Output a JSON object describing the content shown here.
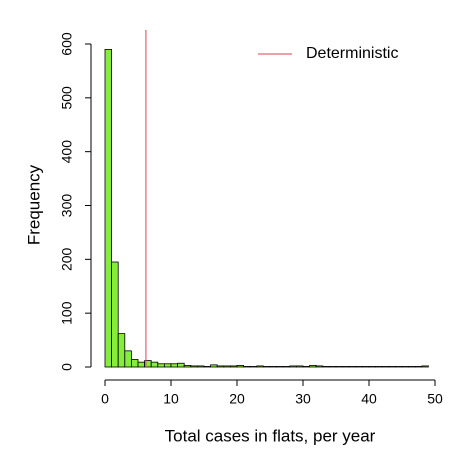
{
  "chart_data": {
    "type": "histogram",
    "x_label": "Total cases in flats, per year",
    "y_label": "Frequency",
    "bins": [
      0,
      1,
      2,
      3,
      4,
      5,
      6,
      7,
      8,
      9,
      10,
      11,
      12,
      13,
      14,
      15,
      16,
      17,
      18,
      19,
      20,
      21,
      22,
      23,
      24,
      25,
      26,
      27,
      28,
      29,
      30,
      31,
      32,
      33,
      34,
      35,
      36,
      37,
      38,
      39,
      40,
      41,
      42,
      43,
      44,
      45,
      46,
      47,
      48,
      49
    ],
    "values": [
      590,
      195,
      62,
      30,
      14,
      9,
      12,
      9,
      6,
      6,
      6,
      7,
      3,
      2,
      2,
      1,
      4,
      2,
      2,
      2,
      3,
      1,
      1,
      2,
      1,
      1,
      1,
      1,
      2,
      2,
      1,
      3,
      2,
      1,
      1,
      1,
      1,
      1,
      1,
      1,
      1,
      1,
      1,
      1,
      1,
      1,
      1,
      1,
      2
    ],
    "color": "#86ee3a",
    "xlim": [
      0,
      50
    ],
    "ylim": [
      0,
      600
    ],
    "xticks": [
      0,
      10,
      20,
      30,
      40,
      50
    ],
    "yticks": [
      0,
      100,
      200,
      300,
      400,
      500,
      600
    ],
    "reference_line": {
      "name": "Deterministic",
      "value": 6.2,
      "color": "#d8434a"
    },
    "legend_position": "top-right"
  }
}
